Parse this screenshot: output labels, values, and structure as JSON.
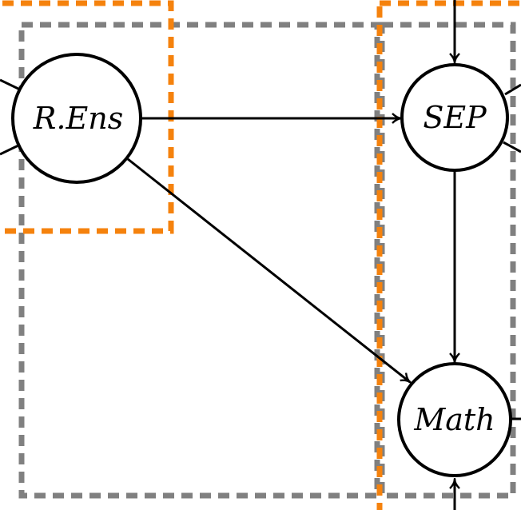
{
  "diagram": {
    "nodes": [
      {
        "id": "rens",
        "label": "R.Ens"
      },
      {
        "id": "sep",
        "label": "SEP"
      },
      {
        "id": "math",
        "label": "Math"
      }
    ],
    "edges": [
      {
        "from": "rens",
        "to": "sep"
      },
      {
        "from": "rens",
        "to": "math"
      },
      {
        "from": "sep",
        "to": "math"
      }
    ],
    "colors": {
      "group_orange": "#f5820d",
      "group_gray": "#808080",
      "stroke": "#000000"
    }
  }
}
